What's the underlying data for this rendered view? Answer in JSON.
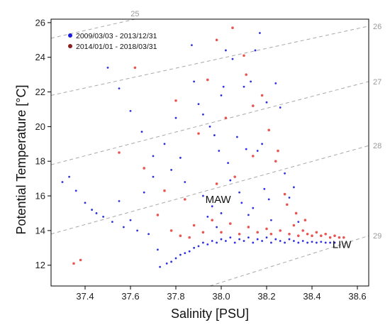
{
  "chart_data": {
    "type": "scatter",
    "xlabel": "Salinity [PSU]",
    "ylabel": "Potential Temperature [°C]",
    "xlim": [
      37.25,
      38.65
    ],
    "ylim": [
      10.8,
      26.2
    ],
    "x_ticks": [
      "37.4",
      "37.6",
      "37.8",
      "38.0",
      "38.2",
      "38.4",
      "38.6"
    ],
    "y_ticks": [
      "12",
      "14",
      "16",
      "18",
      "20",
      "22",
      "24",
      "26"
    ],
    "grid": false,
    "legend_position": "top-left",
    "isopycnals": {
      "style": "dashed",
      "lines": [
        {
          "label": "25",
          "points": [
            [
              37.25,
              25.1
            ],
            [
              37.62,
              26.2
            ]
          ]
        },
        {
          "label": "26",
          "points": [
            [
              37.25,
              21.8
            ],
            [
              38.65,
              25.8
            ]
          ]
        },
        {
          "label": "27",
          "points": [
            [
              37.25,
              17.8
            ],
            [
              38.65,
              22.6
            ]
          ]
        },
        {
          "label": "28",
          "points": [
            [
              37.25,
              13.8
            ],
            [
              38.65,
              18.9
            ]
          ]
        },
        {
          "label": "29",
          "points": [
            [
              37.95,
              10.8
            ],
            [
              38.65,
              13.7
            ]
          ]
        }
      ]
    },
    "annotations": [
      {
        "text": "MAW",
        "x": 37.93,
        "y": 15.6
      },
      {
        "text": "LIW",
        "x": 38.49,
        "y": 13.0
      }
    ],
    "series": [
      {
        "name": "2009/03/03 - 2013/12/31",
        "color": "#1a1adb",
        "points": [
          [
            37.3,
            16.8
          ],
          [
            37.33,
            17.1
          ],
          [
            37.36,
            16.3
          ],
          [
            37.4,
            15.6
          ],
          [
            37.43,
            15.2
          ],
          [
            37.45,
            15.0
          ],
          [
            37.48,
            14.8
          ],
          [
            37.52,
            14.5
          ],
          [
            37.55,
            15.7
          ],
          [
            37.57,
            14.2
          ],
          [
            37.6,
            14.6
          ],
          [
            37.63,
            14.0
          ],
          [
            37.66,
            16.2
          ],
          [
            37.68,
            13.8
          ],
          [
            37.7,
            17.1
          ],
          [
            37.72,
            12.9
          ],
          [
            37.73,
            11.9
          ],
          [
            37.76,
            12.1
          ],
          [
            37.78,
            12.2
          ],
          [
            37.8,
            12.4
          ],
          [
            37.82,
            12.6
          ],
          [
            37.84,
            12.7
          ],
          [
            37.86,
            12.8
          ],
          [
            37.88,
            13.0
          ],
          [
            37.9,
            13.1
          ],
          [
            37.92,
            13.3
          ],
          [
            37.94,
            13.2
          ],
          [
            37.96,
            13.4
          ],
          [
            37.98,
            13.3
          ],
          [
            38.0,
            13.5
          ],
          [
            38.02,
            13.4
          ],
          [
            38.04,
            13.6
          ],
          [
            38.06,
            13.3
          ],
          [
            38.08,
            13.5
          ],
          [
            38.1,
            13.4
          ],
          [
            38.12,
            13.6
          ],
          [
            38.14,
            13.3
          ],
          [
            38.16,
            13.5
          ],
          [
            38.18,
            13.4
          ],
          [
            38.2,
            13.6
          ],
          [
            38.22,
            13.3
          ],
          [
            38.24,
            13.5
          ],
          [
            38.26,
            13.4
          ],
          [
            38.28,
            13.3
          ],
          [
            38.3,
            13.5
          ],
          [
            38.32,
            13.4
          ],
          [
            38.34,
            13.3
          ],
          [
            38.36,
            13.4
          ],
          [
            38.38,
            13.3
          ],
          [
            38.4,
            13.35
          ],
          [
            38.42,
            13.3
          ],
          [
            38.44,
            13.35
          ],
          [
            38.46,
            13.3
          ],
          [
            38.48,
            13.3
          ],
          [
            38.5,
            13.3
          ],
          [
            37.87,
            24.7
          ],
          [
            37.88,
            22.6
          ],
          [
            37.9,
            21.3
          ],
          [
            37.92,
            20.7
          ],
          [
            37.95,
            20.0
          ],
          [
            37.97,
            19.5
          ],
          [
            37.99,
            18.6
          ],
          [
            38.0,
            21.8
          ],
          [
            38.01,
            22.3
          ],
          [
            38.02,
            24.4
          ],
          [
            38.03,
            17.9
          ],
          [
            38.04,
            16.9
          ],
          [
            38.05,
            23.9
          ],
          [
            38.07,
            19.4
          ],
          [
            38.08,
            16.2
          ],
          [
            38.09,
            15.6
          ],
          [
            38.1,
            22.3
          ],
          [
            38.11,
            18.7
          ],
          [
            38.12,
            14.9
          ],
          [
            38.13,
            22.6
          ],
          [
            38.14,
            15.3
          ],
          [
            38.15,
            24.4
          ],
          [
            38.16,
            18.6
          ],
          [
            38.17,
            25.4
          ],
          [
            38.18,
            19.0
          ],
          [
            38.19,
            16.4
          ],
          [
            38.2,
            21.4
          ],
          [
            38.21,
            15.8
          ],
          [
            38.22,
            14.6
          ],
          [
            38.24,
            22.5
          ],
          [
            38.26,
            21.1
          ],
          [
            38.28,
            17.3
          ],
          [
            38.3,
            15.9
          ],
          [
            38.32,
            16.5
          ],
          [
            38.34,
            14.5
          ],
          [
            37.8,
            20.5
          ],
          [
            37.82,
            18.2
          ],
          [
            37.84,
            16.8
          ],
          [
            37.78,
            17.5
          ],
          [
            37.75,
            19.0
          ],
          [
            37.7,
            18.3
          ],
          [
            37.65,
            19.7
          ],
          [
            37.6,
            20.9
          ],
          [
            37.55,
            22.2
          ],
          [
            37.5,
            23.4
          ],
          [
            37.92,
            16.0
          ],
          [
            37.94,
            14.8
          ],
          [
            37.96,
            15.4
          ],
          [
            37.98,
            14.2
          ],
          [
            38.0,
            15.0
          ]
        ]
      },
      {
        "name": "2014/01/01 - 2018/03/31",
        "color": "#8b1e1e",
        "points": [
          [
            37.35,
            12.1
          ],
          [
            37.38,
            12.3
          ],
          [
            37.55,
            18.5
          ],
          [
            37.62,
            23.4
          ],
          [
            37.66,
            17.6
          ],
          [
            37.72,
            14.9
          ],
          [
            37.75,
            16.3
          ],
          [
            37.8,
            21.5
          ],
          [
            37.84,
            15.8
          ],
          [
            37.88,
            14.3
          ],
          [
            37.9,
            19.6
          ],
          [
            37.92,
            13.9
          ],
          [
            37.94,
            22.7
          ],
          [
            37.96,
            14.6
          ],
          [
            37.98,
            16.7
          ],
          [
            38.0,
            13.9
          ],
          [
            38.02,
            20.5
          ],
          [
            38.04,
            14.4
          ],
          [
            38.06,
            17.1
          ],
          [
            38.08,
            13.8
          ],
          [
            38.1,
            24.1
          ],
          [
            38.12,
            14.2
          ],
          [
            38.14,
            18.3
          ],
          [
            38.16,
            13.9
          ],
          [
            38.18,
            21.8
          ],
          [
            38.2,
            14.1
          ],
          [
            38.22,
            13.8
          ],
          [
            38.24,
            18.0
          ],
          [
            38.26,
            14.0
          ],
          [
            38.28,
            16.1
          ],
          [
            38.3,
            13.8
          ],
          [
            38.32,
            14.3
          ],
          [
            38.34,
            13.7
          ],
          [
            38.36,
            14.0
          ],
          [
            38.38,
            13.8
          ],
          [
            38.4,
            13.7
          ],
          [
            38.42,
            13.9
          ],
          [
            38.44,
            13.7
          ],
          [
            38.46,
            13.8
          ],
          [
            38.48,
            13.6
          ],
          [
            38.5,
            13.7
          ],
          [
            38.52,
            13.6
          ],
          [
            38.54,
            13.6
          ],
          [
            37.98,
            25.0
          ],
          [
            38.05,
            25.7
          ],
          [
            38.11,
            23.0
          ],
          [
            38.14,
            21.2
          ],
          [
            38.21,
            19.8
          ],
          [
            38.25,
            18.6
          ],
          [
            38.29,
            15.5
          ],
          [
            38.33,
            15.0
          ],
          [
            38.37,
            14.6
          ],
          [
            37.86,
            13.6
          ],
          [
            37.82,
            13.7
          ],
          [
            37.78,
            14.0
          ]
        ]
      }
    ]
  }
}
